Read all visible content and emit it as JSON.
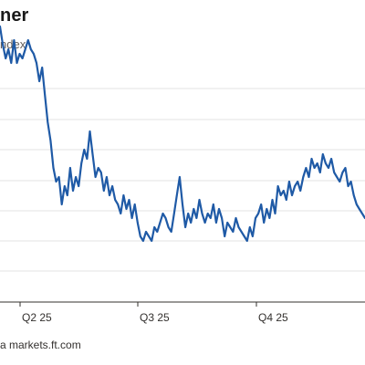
{
  "header": {
    "title": "ner",
    "subtitle": "ndex"
  },
  "footer": {
    "source": "a markets.ft.com"
  },
  "chart_data": {
    "type": "line",
    "title": "ner",
    "subtitle": "ndex",
    "xlabel": "",
    "ylabel": "",
    "x_tick_labels": [
      "Q2 25",
      "Q3 25",
      "Q4 25"
    ],
    "y_tick_labels": [],
    "grid": true,
    "legend": "none",
    "line_color": "#1f5aa6",
    "ylim": [
      -2.5,
      2.5
    ],
    "xlim": [
      0,
      130
    ],
    "series": [
      {
        "x": [
          0,
          1,
          2,
          3,
          4,
          5,
          6,
          7,
          8,
          9,
          10,
          11,
          12,
          13,
          14,
          15,
          16,
          17,
          18,
          19,
          20,
          21,
          22,
          23,
          24,
          25,
          26,
          27,
          28,
          29,
          30,
          31,
          32,
          33,
          34,
          35,
          36,
          37,
          38,
          39,
          40,
          41,
          42,
          43,
          44,
          45,
          46,
          47,
          48,
          49,
          50,
          51,
          52,
          53,
          54,
          55,
          56,
          57,
          58,
          59,
          60,
          61,
          62,
          63,
          64,
          65,
          66,
          67,
          68,
          69,
          70,
          71,
          72,
          73,
          74,
          75,
          76,
          77,
          78,
          79,
          80,
          81,
          82,
          83,
          84,
          85,
          86,
          87,
          88,
          89,
          90,
          91,
          92,
          93,
          94,
          95,
          96,
          97,
          98,
          99,
          100,
          101,
          102,
          103,
          104,
          105,
          106,
          107,
          108,
          109,
          110,
          111,
          112,
          113,
          114,
          115,
          116,
          117,
          118,
          119,
          120,
          121,
          122,
          123,
          124,
          125,
          126,
          127,
          128,
          129,
          130
        ],
        "values": [
          1.35,
          1.15,
          1.0,
          1.1,
          0.95,
          1.2,
          0.95,
          1.05,
          1.0,
          1.1,
          1.2,
          1.1,
          1.05,
          0.95,
          0.75,
          0.9,
          0.6,
          0.3,
          0.1,
          -0.2,
          -0.35,
          -0.3,
          -0.6,
          -0.4,
          -0.5,
          -0.2,
          -0.45,
          -0.3,
          -0.4,
          -0.15,
          0.0,
          -0.1,
          0.2,
          -0.05,
          -0.3,
          -0.2,
          -0.25,
          -0.45,
          -0.3,
          -0.5,
          -0.4,
          -0.55,
          -0.6,
          -0.7,
          -0.5,
          -0.65,
          -0.55,
          -0.75,
          -0.6,
          -0.8,
          -0.95,
          -1.0,
          -0.9,
          -0.95,
          -1.0,
          -0.85,
          -0.9,
          -0.8,
          -0.7,
          -0.75,
          -0.85,
          -0.9,
          -0.7,
          -0.5,
          -0.3,
          -0.6,
          -0.85,
          -0.7,
          -0.8,
          -0.65,
          -0.75,
          -0.55,
          -0.7,
          -0.8,
          -0.7,
          -0.75,
          -0.6,
          -0.8,
          -0.65,
          -0.75,
          -0.95,
          -0.8,
          -0.85,
          -0.9,
          -0.75,
          -0.85,
          -0.9,
          -0.95,
          -1.0,
          -0.85,
          -0.95,
          -0.75,
          -0.7,
          -0.6,
          -0.8,
          -0.65,
          -0.75,
          -0.55,
          -0.7,
          -0.4,
          -0.5,
          -0.45,
          -0.55,
          -0.35,
          -0.5,
          -0.4,
          -0.35,
          -0.45,
          -0.3,
          -0.2,
          -0.3,
          -0.1,
          -0.2,
          -0.15,
          -0.25,
          -0.05,
          -0.15,
          -0.2,
          -0.1,
          -0.25,
          -0.3,
          -0.35,
          -0.25,
          -0.2,
          -0.4,
          -0.35,
          -0.5,
          -0.6,
          -0.65,
          -0.7,
          -0.75
        ]
      }
    ]
  }
}
